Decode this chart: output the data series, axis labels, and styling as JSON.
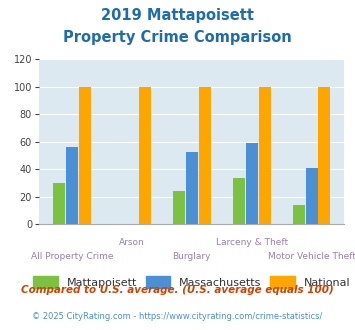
{
  "title_line1": "2019 Mattapoisett",
  "title_line2": "Property Crime Comparison",
  "categories": [
    "All Property Crime",
    "Arson",
    "Burglary",
    "Larceny & Theft",
    "Motor Vehicle Theft"
  ],
  "mattapoisett": [
    30,
    0,
    24,
    34,
    14
  ],
  "massachusetts": [
    56,
    0,
    53,
    59,
    41
  ],
  "national": [
    100,
    100,
    100,
    100,
    100
  ],
  "color_mattapoisett": "#7DC142",
  "color_massachusetts": "#4B8FD5",
  "color_national": "#FFA500",
  "ylim": [
    0,
    120
  ],
  "yticks": [
    0,
    20,
    40,
    60,
    80,
    100,
    120
  ],
  "title_color": "#1F6BB0",
  "xlabel_color": "#9B7FAB",
  "bg_color": "#DCE9F0",
  "fig_bg_color": "#FFFFFF",
  "footnote1": "Compared to U.S. average. (U.S. average equals 100)",
  "footnote2": "© 2025 CityRating.com - https://www.cityrating.com/crime-statistics/",
  "footnote1_color": "#CC4400",
  "footnote2_color": "#4B8FD5",
  "grid_color": "#FFFFFF",
  "bar_width": 0.2,
  "bar_gap": 0.015
}
